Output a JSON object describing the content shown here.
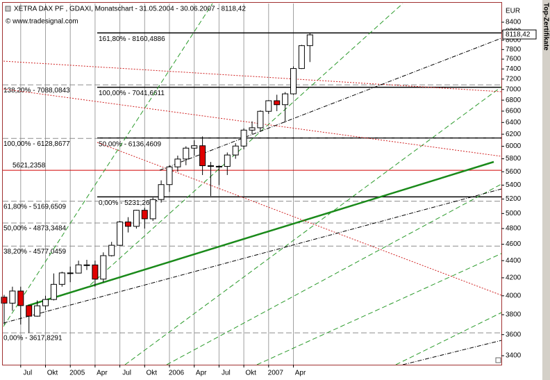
{
  "chart_data": {
    "type": "candlestick",
    "title": "XETRA DAX PF , GDAXI, Monatschart - 31.05.2004 - 30.06.2007 - 8118,42",
    "subtitle": "© www.tradesignal.com",
    "y_label": "EUR",
    "side_tab": "Top-Zertifikate",
    "categories": [
      null,
      null,
      "Jul",
      null,
      null,
      "Okt",
      null,
      null,
      "2005",
      null,
      null,
      "Apr",
      null,
      null,
      "Jul",
      null,
      null,
      "Okt",
      null,
      null,
      "2006",
      null,
      null,
      "Apr",
      null,
      null,
      "Jul",
      null,
      null,
      "Okt",
      null,
      null,
      "2007",
      null,
      null,
      "Apr",
      null,
      null
    ],
    "open": [
      3985,
      3921,
      4052,
      3895,
      3785,
      3893,
      3960,
      4126,
      4256,
      4254,
      4350,
      4349,
      4185,
      4460,
      4587,
      4887,
      4829,
      5044,
      4929,
      5193,
      5408,
      5674,
      5796,
      5970,
      6009,
      5692,
      5683,
      5681,
      5860,
      6004,
      6269,
      6309,
      6597,
      6789,
      6716,
      6917,
      7409,
      7883
    ],
    "high": [
      4010,
      4100,
      4100,
      3900,
      3950,
      4000,
      4250,
      4270,
      4330,
      4400,
      4410,
      4400,
      4500,
      4630,
      4900,
      4950,
      5050,
      5080,
      5220,
      5470,
      5700,
      5850,
      6000,
      6100,
      6162,
      5750,
      5700,
      5900,
      6050,
      6300,
      6420,
      6615,
      6800,
      6900,
      6950,
      7450,
      7900,
      8160
    ],
    "low": [
      3700,
      3840,
      3700,
      3618,
      3780,
      3850,
      3950,
      4100,
      4150,
      4250,
      4290,
      4100,
      4150,
      4450,
      4580,
      4750,
      4800,
      4800,
      4900,
      5150,
      5300,
      5600,
      5700,
      5850,
      5550,
      5243,
      5400,
      5550,
      5800,
      5950,
      6200,
      6250,
      6550,
      6600,
      6400,
      6900,
      7400,
      7540
    ],
    "close": [
      3921,
      4052,
      3895,
      3785,
      3893,
      3960,
      4126,
      4256,
      4254,
      4350,
      4349,
      4185,
      4460,
      4587,
      4887,
      4829,
      5044,
      4929,
      5193,
      5408,
      5674,
      5796,
      5970,
      6009,
      5692,
      5683,
      5681,
      5860,
      6004,
      6269,
      6309,
      6597,
      6789,
      6716,
      6917,
      7409,
      7883,
      8118
    ],
    "up_color": "#ffffff",
    "down_color": "#e00000",
    "log_scale": true,
    "grid": "x",
    "ylim": [
      3318,
      8838
    ],
    "yticks": [
      3400,
      3600,
      3800,
      4000,
      4200,
      4400,
      4600,
      4800,
      5000,
      5200,
      5400,
      5600,
      5800,
      6000,
      6200,
      6400,
      6600,
      6800,
      7000,
      7200,
      7400,
      7600,
      7800,
      8000,
      8200,
      8400
    ],
    "last_price": {
      "value": 8118.42,
      "label": "8118,42"
    },
    "fib_right": {
      "color": "#000000",
      "levels": [
        {
          "value": 8160.4886,
          "label": "161,80% - 8160,4886"
        },
        {
          "value": 7041.6611,
          "label": "100,00% - 7041,6611"
        },
        {
          "value": 6136.4609,
          "label": "50,00% - 6136,4609"
        },
        {
          "value": 5231.2607,
          "label": "0,00% - 5231,2607"
        }
      ]
    },
    "fib_left": {
      "color": "#8c8c8c",
      "levels": [
        {
          "value": 7088.0843,
          "label": "138,20% - 7088,0843"
        },
        {
          "value": 6128.8677,
          "label": "100,00% - 6128,8677"
        },
        {
          "value": 5169.6509,
          "label": "61,80% - 5169,6509"
        },
        {
          "value": 4873.3484,
          "label": "50,00% - 4873,3484"
        },
        {
          "value": 4577.0459,
          "label": "38,20% - 4577,0459"
        },
        {
          "value": 3617.8291,
          "label": "0,00% - 3617,8291"
        }
      ]
    },
    "support": {
      "color": "#d00000",
      "value": 5621.2358,
      "label": "5621,2358"
    }
  }
}
